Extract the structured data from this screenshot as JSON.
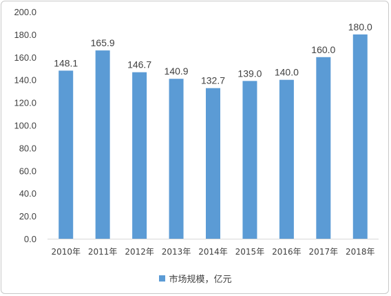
{
  "chart_data": {
    "type": "bar",
    "categories": [
      "2010年",
      "2011年",
      "2012年",
      "2013年",
      "2014年",
      "2015年",
      "2016年",
      "2017年",
      "2018年"
    ],
    "series": [
      {
        "name": "市场规模，亿元",
        "values": [
          148.1,
          165.9,
          146.7,
          140.9,
          132.7,
          139.0,
          140.0,
          160.0,
          180.0
        ]
      }
    ],
    "data_labels": [
      "148.1",
      "165.9",
      "146.7",
      "140.9",
      "132.7",
      "139.0",
      "140.0",
      "160.0",
      "180.0"
    ],
    "ylim": [
      0,
      200
    ],
    "yticks": [
      "0.0",
      "20.0",
      "40.0",
      "60.0",
      "80.0",
      "100.0",
      "120.0",
      "140.0",
      "160.0",
      "180.0",
      "200.0"
    ],
    "title": "",
    "xlabel": "",
    "ylabel": "",
    "grid": false,
    "legend_position": "bottom",
    "bar_color": "#5b9bd5"
  }
}
